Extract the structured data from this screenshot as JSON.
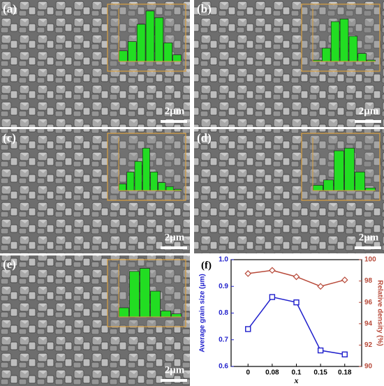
{
  "panels": [
    {
      "label": "(a)",
      "scale_bar": "2μm"
    },
    {
      "label": "(b)",
      "scale_bar": "2μm"
    },
    {
      "label": "(c)",
      "scale_bar": "2μm"
    },
    {
      "label": "(d)",
      "scale_bar": "2μm"
    },
    {
      "label": "(e)",
      "scale_bar": "2μm"
    },
    {
      "label": "(f)"
    }
  ],
  "chart_data": [
    {
      "type": "bar",
      "values": [
        8,
        15,
        28,
        38,
        33,
        14,
        5
      ],
      "color": "#22dd22",
      "ylim": [
        0,
        40
      ]
    },
    {
      "type": "bar",
      "values": [
        1,
        10,
        30,
        32,
        19,
        6,
        1
      ],
      "color": "#22dd22",
      "ylim": [
        0,
        40
      ]
    },
    {
      "type": "bar",
      "values": [
        5,
        14,
        22,
        32,
        14,
        6,
        3,
        1
      ],
      "color": "#22dd22",
      "ylim": [
        0,
        40
      ]
    },
    {
      "type": "bar",
      "values": [
        4,
        8,
        30,
        32,
        14,
        2
      ],
      "color": "#22dd22",
      "ylim": [
        0,
        40
      ]
    },
    {
      "type": "bar",
      "values": [
        6,
        30,
        32,
        17,
        4,
        2
      ],
      "color": "#22dd22",
      "ylim": [
        0,
        35
      ]
    },
    {
      "type": "line",
      "categories": [
        "0",
        "0.08",
        "0.1",
        "0.15",
        "0.18"
      ],
      "x_label": "x",
      "y_label": "Average grain size (μm)",
      "y2_label": "Relative density (%)",
      "ylim": [
        0.6,
        1.0
      ],
      "yticks": [
        0.6,
        0.7,
        0.8,
        0.9,
        {
          "value": 1.0,
          "label": "1.0"
        }
      ],
      "y2lim": [
        90,
        100
      ],
      "y2ticks": [
        90,
        92,
        94,
        96,
        98,
        100
      ],
      "series": [
        {
          "name": "Average grain size",
          "color": "#1f1fcc",
          "values": [
            0.74,
            0.86,
            0.84,
            0.66,
            0.645
          ]
        },
        {
          "name": "Relative density",
          "color": "#b84a3a",
          "axis": "y2",
          "values": [
            98.7,
            99.0,
            98.4,
            97.5,
            98.1
          ]
        }
      ]
    }
  ]
}
